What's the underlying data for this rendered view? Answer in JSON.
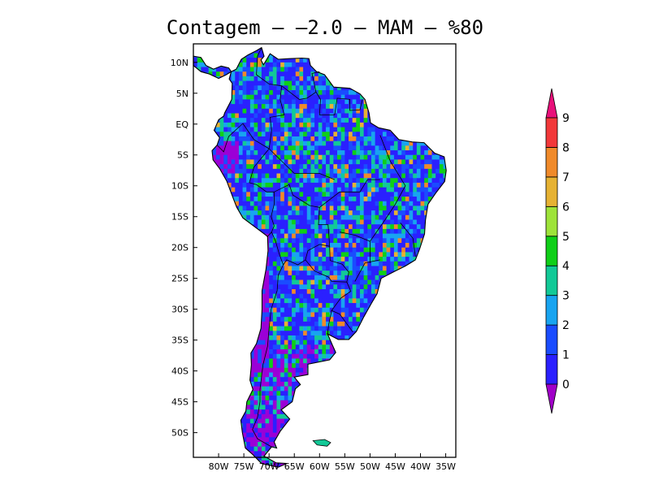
{
  "title": "Contagem – –2.0 – MAM – %80",
  "map": {
    "lon_range": [
      -85,
      -33
    ],
    "lat_range": [
      -54,
      13
    ],
    "lon_ticks": [
      "80W",
      "75W",
      "70W",
      "65W",
      "60W",
      "55W",
      "50W",
      "45W",
      "40W",
      "35W"
    ],
    "lon_values": [
      -80,
      -75,
      -70,
      -65,
      -60,
      -55,
      -50,
      -45,
      -40,
      -35
    ],
    "lat_ticks": [
      "10N",
      "5N",
      "EQ",
      "5S",
      "10S",
      "15S",
      "20S",
      "25S",
      "30S",
      "35S",
      "40S",
      "45S",
      "50S"
    ],
    "lat_values": [
      10,
      5,
      0,
      -5,
      -10,
      -15,
      -20,
      -25,
      -30,
      -35,
      -40,
      -45,
      -50
    ]
  },
  "colorbar": {
    "labels": [
      "0",
      "1",
      "2",
      "3",
      "4",
      "5",
      "6",
      "7",
      "8",
      "9"
    ],
    "colors": [
      "#9b00d6",
      "#2a20ff",
      "#1a4cff",
      "#18a4f0",
      "#12c997",
      "#0fcf18",
      "#9ee33a",
      "#e6b233",
      "#f08a2a",
      "#f2383a",
      "#e8107a"
    ],
    "low_color": "#a000c8",
    "high_color": "#e8107a"
  }
}
